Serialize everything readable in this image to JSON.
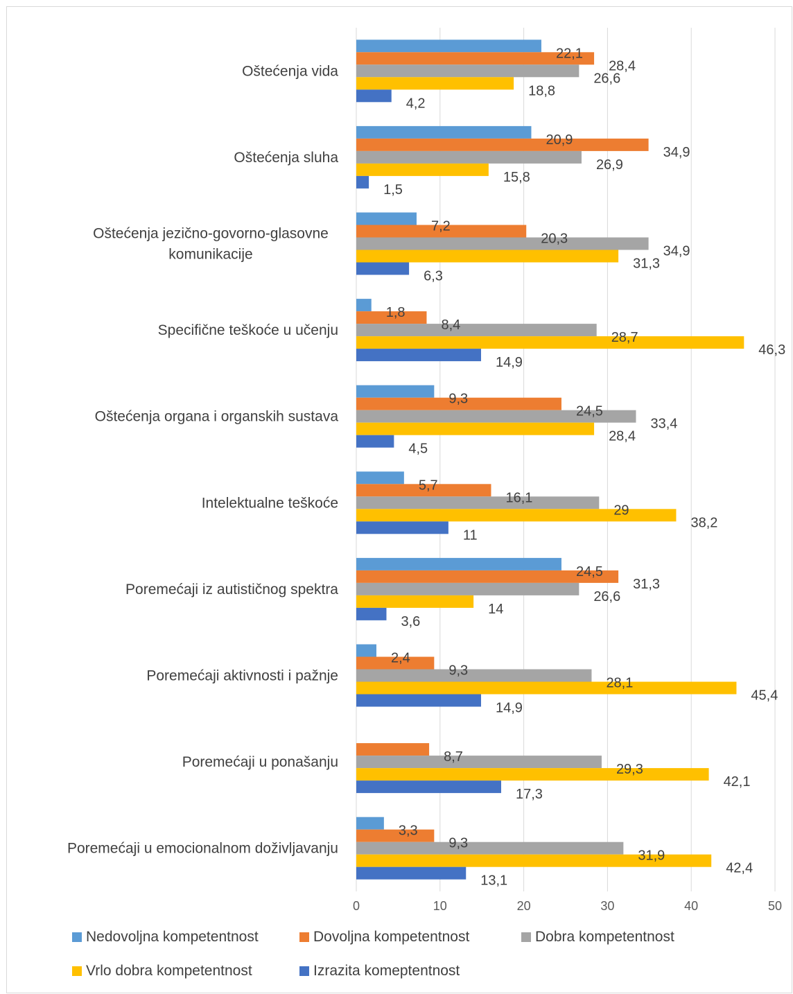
{
  "chart_data": {
    "type": "bar",
    "orientation": "horizontal",
    "title": "",
    "xlabel": "",
    "ylabel": "",
    "xlim": [
      0,
      50
    ],
    "xticks": [
      0,
      10,
      20,
      30,
      40,
      50
    ],
    "grid": true,
    "legend_position": "bottom",
    "categories": [
      {
        "lines": [
          "Oštećenja vida"
        ]
      },
      {
        "lines": [
          "Oštećenja sluha"
        ]
      },
      {
        "lines": [
          "Oštećenja jezično-govorno-glasovne",
          "komunikacije"
        ]
      },
      {
        "lines": [
          "Specifične teškoće u učenju"
        ]
      },
      {
        "lines": [
          "Oštećenja organa i organskih sustava"
        ]
      },
      {
        "lines": [
          "Intelektualne teškoće"
        ]
      },
      {
        "lines": [
          "Poremećaji iz autističnog spektra"
        ]
      },
      {
        "lines": [
          "Poremećaji aktivnosti i pažnje"
        ]
      },
      {
        "lines": [
          "Poremećaji u ponašanju"
        ]
      },
      {
        "lines": [
          "Poremećaji u emocionalnom doživljavanju"
        ]
      }
    ],
    "series": [
      {
        "name": "Nedovoljna kompetentnost",
        "color": "#5b9bd5",
        "values": [
          22.1,
          20.9,
          7.2,
          1.8,
          9.3,
          5.7,
          24.5,
          2.4,
          null,
          3.3
        ],
        "labels": [
          "22,1",
          "20,9",
          "7,2",
          "1,8",
          "9,3",
          "5,7",
          "24,5",
          "2,4",
          "",
          "3,3"
        ]
      },
      {
        "name": "Dovoljna kompetentnost",
        "color": "#ed7d31",
        "values": [
          28.4,
          34.9,
          20.3,
          8.4,
          24.5,
          16.1,
          31.3,
          9.3,
          8.7,
          9.3
        ],
        "labels": [
          "28,4",
          "34,9",
          "20,3",
          "8,4",
          "24,5",
          "16,1",
          "31,3",
          "9,3",
          "8,7",
          "9,3"
        ]
      },
      {
        "name": "Dobra kompetentnost",
        "color": "#a5a5a5",
        "values": [
          26.6,
          26.9,
          34.9,
          28.7,
          33.4,
          29,
          26.6,
          28.1,
          29.3,
          31.9
        ],
        "labels": [
          "26,6",
          "26,9",
          "34,9",
          "28,7",
          "33,4",
          "29",
          "26,6",
          "28,1",
          "29,3",
          "31,9"
        ]
      },
      {
        "name": "Vrlo dobra kompetentnost",
        "color": "#ffc000",
        "values": [
          18.8,
          15.8,
          31.3,
          46.3,
          28.4,
          38.2,
          14,
          45.4,
          42.1,
          42.4
        ],
        "labels": [
          "18,8",
          "15,8",
          "31,3",
          "46,3",
          "28,4",
          "38,2",
          "14",
          "45,4",
          "42,1",
          "42,4"
        ]
      },
      {
        "name": "Izrazita komeptentnost",
        "color": "#4472c4",
        "values": [
          4.2,
          1.5,
          6.3,
          14.9,
          4.5,
          11,
          3.6,
          14.9,
          17.3,
          13.1
        ],
        "labels": [
          "4,2",
          "1,5",
          "6,3",
          "14,9",
          "4,5",
          "11",
          "3,6",
          "14,9",
          "17,3",
          "13,1"
        ]
      }
    ]
  }
}
